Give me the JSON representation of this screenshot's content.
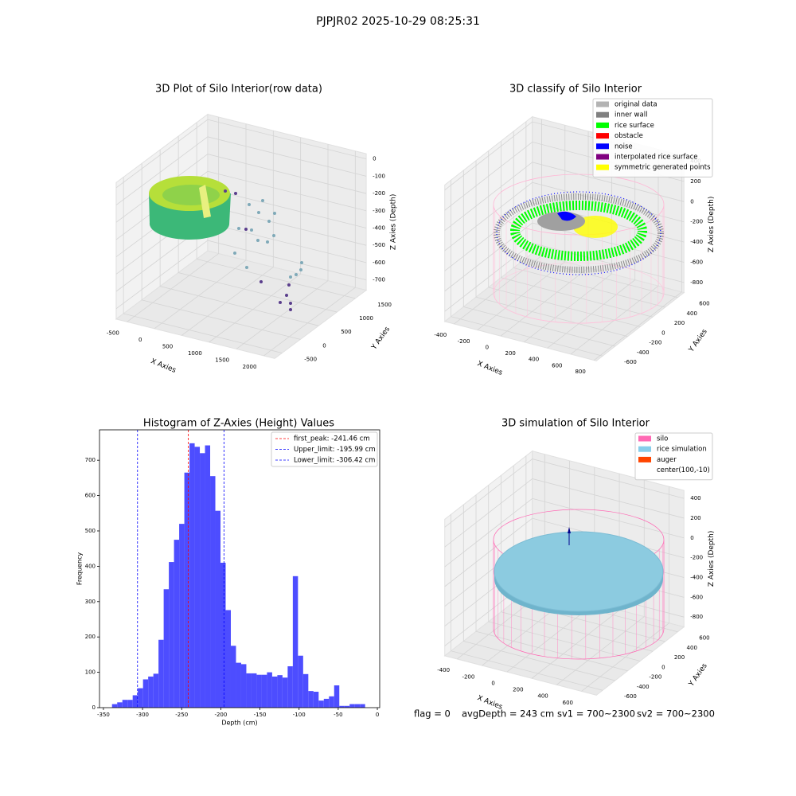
{
  "title": "PJPJR02 2025-10-29 08:25:31",
  "chart_data": [
    {
      "type": "scatter3d",
      "title": "3D Plot of Silo Interior(row data)",
      "xlabel": "X Axies",
      "ylabel": "Y Axies",
      "zlabel": "Z Axies (Depth)",
      "xlim": [
        -700,
        2200
      ],
      "ylim": [
        -700,
        1800
      ],
      "zlim": [
        -760,
        30
      ],
      "xticks": [
        -500,
        0,
        500,
        1000,
        1500,
        2000
      ],
      "yticks": [
        -500,
        0,
        500,
        1000,
        1500
      ],
      "zticks": [
        0,
        -100,
        -200,
        -300,
        -400,
        -500,
        -600,
        -700
      ]
    },
    {
      "type": "scatter3d",
      "title": "3D classify of Silo Interior",
      "xlabel": "X Axies",
      "ylabel": "Y Axies",
      "zlabel": "Z Axies (Depth)",
      "xlim": [
        -480,
        820
      ],
      "ylim": [
        -700,
        700
      ],
      "zlim": [
        -900,
        450
      ],
      "xticks": [
        -400,
        -200,
        0,
        200,
        400,
        600,
        800
      ],
      "yticks": [
        -600,
        -400,
        -200,
        0,
        200,
        400,
        600
      ],
      "zticks": [
        400,
        200,
        0,
        -200,
        -400,
        -600,
        -800
      ],
      "legend_loc": "upper right",
      "legend": [
        {
          "name": "original data",
          "color": "#b3b3b3"
        },
        {
          "name": "inner wall",
          "color": "#808080"
        },
        {
          "name": "rice surface",
          "color": "#00ff00"
        },
        {
          "name": "obstacle",
          "color": "#ff0000"
        },
        {
          "name": "noise",
          "color": "#0000ff"
        },
        {
          "name": "interpolated rice surface",
          "color": "#800080"
        },
        {
          "name": "symmetric generated points",
          "color": "#ffff00"
        }
      ]
    },
    {
      "type": "histogram",
      "title": "Histogram of Z-Axies (Height) Values",
      "xlabel": "Depth (cm)",
      "ylabel": "Frequency",
      "color": "#4d4dff",
      "bins": [
        -339,
        -332.4,
        -325.8,
        -319.2,
        -312.6,
        -306,
        -299.4,
        -292.8,
        -286.2,
        -279.6,
        -273,
        -266.4,
        -259.8,
        -253.2,
        -246.6,
        -240,
        -233.4,
        -226.8,
        -220.2,
        -213.6,
        -207,
        -200.4,
        -193.8,
        -187.2,
        -180.6,
        -174,
        -167.4,
        -160.8,
        -154.2,
        -147.6,
        -141,
        -134.4,
        -127.8,
        -121.2,
        -114.6,
        -108,
        -101.4,
        -94.8,
        -88.2,
        -81.6,
        -75,
        -68.4,
        -61.8,
        -55.2,
        -48.6,
        -42,
        -35.4,
        -28.8,
        -22.2,
        -15.6,
        -9
      ],
      "values": [
        10,
        15,
        22,
        22,
        35,
        55,
        80,
        88,
        96,
        192,
        335,
        412,
        475,
        520,
        665,
        748,
        738,
        720,
        742,
        655,
        557,
        410,
        276,
        175,
        127,
        123,
        97,
        97,
        93,
        93,
        100,
        88,
        92,
        85,
        117,
        372,
        147,
        95,
        47,
        45,
        20,
        25,
        32,
        63,
        5,
        5,
        10,
        10,
        10,
        0
      ],
      "xlim": [
        -355,
        3
      ],
      "ylim": [
        0,
        786
      ],
      "xticks": [
        -350,
        -300,
        -250,
        -200,
        -150,
        -100,
        -50,
        0
      ],
      "yticks": [
        0,
        100,
        200,
        300,
        400,
        500,
        600,
        700
      ],
      "legend_loc": "upper right",
      "lines": [
        {
          "value": -241.46,
          "label": "first_peak: -241.46 cm",
          "color": "#ff0000"
        },
        {
          "value": -195.99,
          "label": "Upper_limit: -195.99 cm",
          "color": "#0000ff"
        },
        {
          "value": -306.42,
          "label": "Lower_limit: -306.42 cm",
          "color": "#0000ff"
        }
      ]
    },
    {
      "type": "surface3d",
      "title": "3D simulation of Silo Interior",
      "xlabel": "X Axies",
      "ylabel": "Y Axies",
      "zlabel": "Z Axies (Depth)",
      "xlim": [
        -500,
        720
      ],
      "ylim": [
        -700,
        700
      ],
      "zlim": [
        -900,
        480
      ],
      "xticks": [
        -400,
        -200,
        0,
        200,
        400,
        600
      ],
      "yticks": [
        -600,
        -400,
        -200,
        0,
        200,
        400,
        600
      ],
      "zticks": [
        400,
        200,
        0,
        -200,
        -400,
        -600,
        -800
      ],
      "legend_loc": "upper right",
      "legend": [
        {
          "name": "silo",
          "color": "#ff69b4"
        },
        {
          "name": "rice simulation",
          "color": "#87ceeb"
        },
        {
          "name": "auger",
          "color": "#ff4500"
        },
        {
          "name": "center(100,-10)",
          "color": "#ffffff"
        }
      ]
    }
  ],
  "footer": [
    "flag = 0",
    "avgDepth = 243 cm",
    "sv1 = 700~2300",
    "sv2 = 700~2300"
  ]
}
